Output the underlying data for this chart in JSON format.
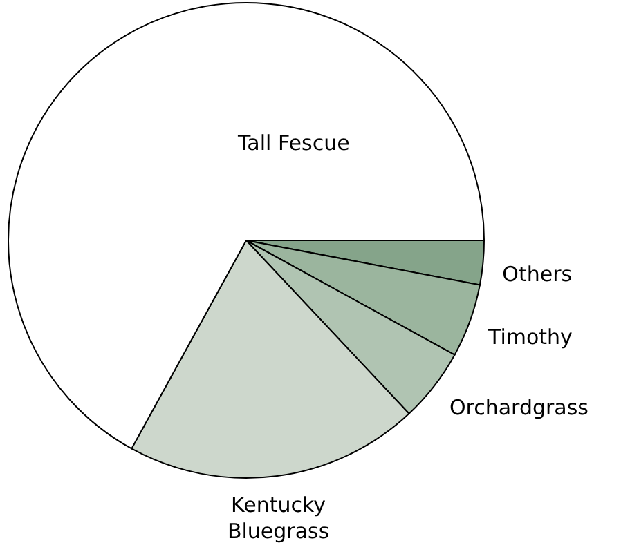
{
  "chart_data": {
    "type": "pie",
    "categories": [
      "Others",
      "Timothy",
      "Orchardgrass",
      "Kentucky Bluegrass",
      "Tall Fescue"
    ],
    "values": [
      3,
      5,
      5,
      20,
      67
    ],
    "colors": [
      "#85a48a",
      "#9bb59e",
      "#b0c4b2",
      "#cdd7cc",
      "#ffffff"
    ]
  }
}
